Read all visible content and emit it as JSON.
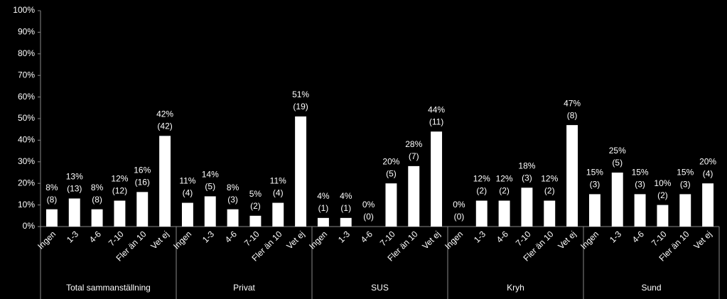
{
  "chart_data": {
    "type": "bar",
    "color": "#ffffff",
    "ylim": [
      0,
      100
    ],
    "yticks": [
      {
        "value": 0,
        "label": "0%"
      },
      {
        "value": 10,
        "label": "10%"
      },
      {
        "value": 20,
        "label": "20%"
      },
      {
        "value": 30,
        "label": "30%"
      },
      {
        "value": 40,
        "label": "40%"
      },
      {
        "value": 50,
        "label": "50%"
      },
      {
        "value": 60,
        "label": "60%"
      },
      {
        "value": 70,
        "label": "70%"
      },
      {
        "value": 80,
        "label": "80%"
      },
      {
        "value": 90,
        "label": "90%"
      },
      {
        "value": 100,
        "label": "100%"
      }
    ],
    "groups": [
      {
        "name": "Total sammanställning",
        "categories": [
          "Ingen",
          "1-3",
          "4-6",
          "7-10",
          "Fler än 10",
          "Vet ej"
        ],
        "values": [
          8,
          13,
          8,
          12,
          16,
          42
        ],
        "value_labels": [
          "8%",
          "13%",
          "8%",
          "12%",
          "16%",
          "42%"
        ],
        "count_labels": [
          "(8)",
          "(13)",
          "(8)",
          "(12)",
          "(16)",
          "(42)"
        ]
      },
      {
        "name": "Privat",
        "categories": [
          "Ingen",
          "1-3",
          "4-6",
          "7-10",
          "Fler än 10",
          "Vet ej"
        ],
        "values": [
          11,
          14,
          8,
          5,
          11,
          51
        ],
        "value_labels": [
          "11%",
          "14%",
          "8%",
          "5%",
          "11%",
          "51%"
        ],
        "count_labels": [
          "(4)",
          "(5)",
          "(3)",
          "(2)",
          "(4)",
          "(19)"
        ]
      },
      {
        "name": "SUS",
        "categories": [
          "Ingen",
          "1-3",
          "4-6",
          "7-10",
          "Fler än 10",
          "Vet ej"
        ],
        "values": [
          4,
          4,
          0,
          20,
          28,
          44
        ],
        "value_labels": [
          "4%",
          "4%",
          "0%",
          "20%",
          "28%",
          "44%"
        ],
        "count_labels": [
          "(1)",
          "(1)",
          "(0)",
          "(5)",
          "(7)",
          "(11)"
        ]
      },
      {
        "name": "Kryh",
        "categories": [
          "Ingen",
          "1-3",
          "4-6",
          "7-10",
          "Fler än 10",
          "Vet ej"
        ],
        "values": [
          0,
          12,
          12,
          18,
          12,
          47
        ],
        "value_labels": [
          "0%",
          "12%",
          "12%",
          "18%",
          "12%",
          "47%"
        ],
        "count_labels": [
          "(0)",
          "(2)",
          "(2)",
          "(3)",
          "(2)",
          "(8)"
        ]
      },
      {
        "name": "Sund",
        "categories": [
          "Ingen",
          "1-3",
          "4-6",
          "7-10",
          "Fler än 10",
          "Vet ej"
        ],
        "values": [
          15,
          25,
          15,
          10,
          15,
          20
        ],
        "value_labels": [
          "15%",
          "25%",
          "15%",
          "10%",
          "15%",
          "20%"
        ],
        "count_labels": [
          "(3)",
          "(5)",
          "(3)",
          "(2)",
          "(3)",
          "(4)"
        ]
      }
    ]
  }
}
